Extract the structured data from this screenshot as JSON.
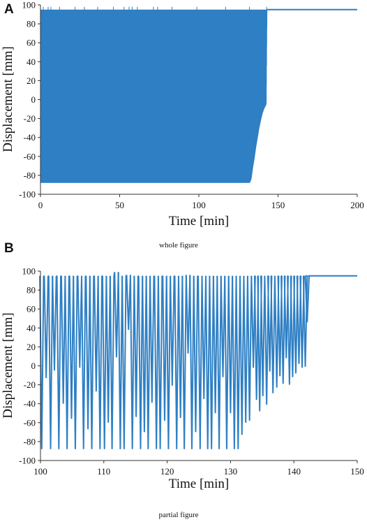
{
  "colors": {
    "series": "#2e7fc4",
    "axis": "#333333",
    "text": "#111111"
  },
  "chart_data": [
    {
      "panel": "A",
      "type": "line",
      "caption": "whole figure",
      "xlabel": "Time [min]",
      "ylabel": "Displacement [mm]",
      "xlim": [
        0,
        200
      ],
      "ylim": [
        -100,
        100
      ],
      "xticks": [
        0,
        50,
        100,
        150,
        200
      ],
      "yticks": [
        -100,
        -80,
        -60,
        -40,
        -20,
        0,
        20,
        40,
        60,
        80,
        100
      ],
      "grid": false,
      "legend": "none",
      "oscillation": {
        "start": 0,
        "end": 143,
        "cycles": 1450,
        "upper": 95,
        "lower": -88,
        "lower_envelope": [
          [
            0,
            -88
          ],
          [
            132,
            -88
          ],
          [
            133,
            -84
          ],
          [
            134,
            -72
          ],
          [
            135,
            -62
          ],
          [
            136,
            -50
          ],
          [
            137,
            -40
          ],
          [
            138,
            -30
          ],
          [
            139,
            -22
          ],
          [
            140,
            -15
          ],
          [
            141,
            -10
          ],
          [
            142.5,
            -5
          ],
          [
            143,
            95
          ]
        ]
      },
      "plateau": [
        [
          143,
          95
        ],
        [
          200,
          95
        ]
      ]
    },
    {
      "panel": "B",
      "type": "line",
      "caption": "partial figure",
      "xlabel": "Time [min]",
      "ylabel": "Displacement [mm]",
      "xlim": [
        100,
        150
      ],
      "ylim": [
        -100,
        100
      ],
      "xticks": [
        100,
        110,
        120,
        130,
        140,
        150
      ],
      "yticks": [
        -100,
        -80,
        -60,
        -40,
        -20,
        0,
        20,
        40,
        60,
        80,
        100
      ],
      "grid": false,
      "legend": "none",
      "cycles": [
        [
          100.2,
          95,
          -88
        ],
        [
          100.9,
          95,
          -13
        ],
        [
          101.6,
          95,
          -88
        ],
        [
          102.2,
          95,
          -5
        ],
        [
          102.9,
          95,
          -88
        ],
        [
          103.6,
          95,
          -40
        ],
        [
          104.2,
          95,
          -88
        ],
        [
          104.9,
          95,
          -56
        ],
        [
          105.5,
          95,
          -88
        ],
        [
          106.2,
          95,
          -2
        ],
        [
          106.8,
          95,
          -88
        ],
        [
          107.5,
          95,
          -67
        ],
        [
          108.1,
          95,
          -88
        ],
        [
          108.8,
          95,
          -27
        ],
        [
          109.4,
          95,
          -88
        ],
        [
          110.1,
          95,
          -88
        ],
        [
          110.7,
          95,
          -60
        ],
        [
          111.3,
          95,
          -88
        ],
        [
          112.0,
          99,
          9
        ],
        [
          112.6,
          95,
          -88
        ],
        [
          113.2,
          95,
          -88
        ],
        [
          113.9,
          96,
          38
        ],
        [
          114.5,
          95,
          -88
        ],
        [
          115.1,
          95,
          -54
        ],
        [
          115.8,
          95,
          -88
        ],
        [
          116.4,
          95,
          -70
        ],
        [
          117.0,
          95,
          -88
        ],
        [
          117.6,
          95,
          -39
        ],
        [
          118.3,
          95,
          -88
        ],
        [
          118.9,
          95,
          -88
        ],
        [
          119.6,
          95,
          -58
        ],
        [
          120.2,
          95,
          -88
        ],
        [
          120.8,
          95,
          -21
        ],
        [
          121.5,
          95,
          -88
        ],
        [
          122.1,
          95,
          -55
        ],
        [
          122.7,
          95,
          -88
        ],
        [
          123.3,
          96,
          13
        ],
        [
          123.9,
          95,
          -88
        ],
        [
          124.5,
          95,
          -70
        ],
        [
          125.2,
          95,
          -88
        ],
        [
          125.8,
          95,
          -35
        ],
        [
          126.4,
          95,
          -88
        ],
        [
          127.0,
          95,
          -88
        ],
        [
          127.6,
          95,
          -50
        ],
        [
          128.2,
          95,
          -88
        ],
        [
          128.8,
          95,
          -12
        ],
        [
          129.4,
          95,
          -88
        ],
        [
          130.0,
          95,
          -50
        ],
        [
          130.6,
          95,
          -88
        ],
        [
          131.2,
          95,
          -88
        ],
        [
          131.8,
          95,
          -73
        ],
        [
          132.4,
          95,
          -60
        ],
        [
          133.0,
          95,
          -58
        ],
        [
          133.6,
          95,
          -2
        ],
        [
          134.1,
          95,
          -36
        ],
        [
          134.6,
          95,
          -48
        ],
        [
          135.1,
          95,
          -32
        ],
        [
          135.7,
          95,
          -41
        ],
        [
          136.2,
          95,
          -6
        ],
        [
          136.7,
          95,
          -29
        ],
        [
          137.3,
          95,
          -23
        ],
        [
          137.8,
          95,
          -11
        ],
        [
          138.3,
          95,
          -19
        ],
        [
          138.8,
          95,
          8
        ],
        [
          139.3,
          95,
          -20
        ],
        [
          139.8,
          95,
          -12
        ],
        [
          140.3,
          95,
          -8
        ],
        [
          140.8,
          95,
          2
        ],
        [
          141.3,
          95,
          -2
        ],
        [
          141.8,
          95,
          -1
        ],
        [
          142.1,
          95,
          46
        ]
      ],
      "plateau": [
        [
          142.2,
          95
        ],
        [
          150,
          95
        ]
      ]
    }
  ]
}
